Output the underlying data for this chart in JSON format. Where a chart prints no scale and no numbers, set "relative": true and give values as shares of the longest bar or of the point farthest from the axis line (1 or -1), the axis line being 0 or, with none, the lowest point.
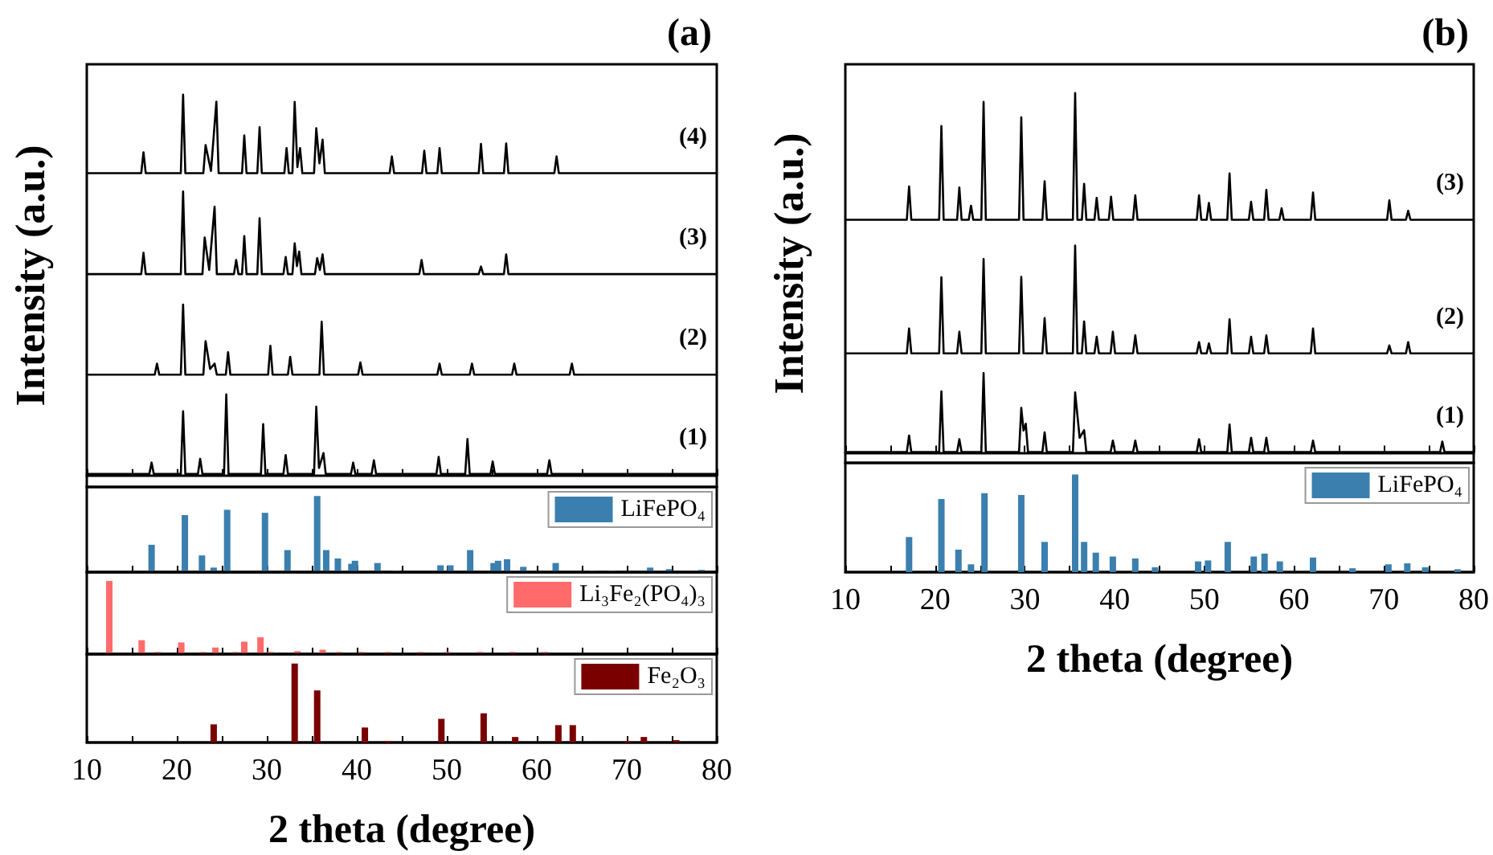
{
  "chart_data": [
    {
      "type": "line",
      "title": "(a)",
      "ylabel": "Intensity (a.u.)",
      "relative": true,
      "xlim": [
        10,
        80
      ],
      "xticks": [
        10,
        {
          "value": 15,
          "label": null
        },
        20,
        {
          "value": 25,
          "label": null
        },
        30,
        {
          "value": 35,
          "label": null
        },
        40,
        {
          "value": 45,
          "label": null
        },
        50,
        {
          "value": 55,
          "label": null
        },
        60,
        {
          "value": 65,
          "label": null
        },
        70,
        {
          "value": 75,
          "label": null
        },
        80
      ],
      "tick_labels": false,
      "series": [
        {
          "name": "(1)",
          "color": "#000000",
          "x": [
            10,
            16.95,
            17.2,
            17.45,
            20.45,
            20.7,
            20.95,
            22.35,
            22.6,
            22.85,
            25.25,
            25.5,
            25.75,
            29.35,
            29.6,
            29.85,
            31.85,
            32.1,
            32.35,
            35.25,
            35.5,
            35.8,
            36.3,
            36.55,
            39.35,
            39.6,
            39.85,
            41.65,
            41.9,
            42.15,
            48.85,
            49.1,
            49.35,
            52.05,
            52.3,
            52.55,
            54.85,
            55.1,
            55.35,
            61.15,
            61.4,
            61.65,
            80
          ],
          "values": [
            0.004,
            0.004,
            0.034,
            0.004,
            0.004,
            0.169,
            0.004,
            0.004,
            0.044,
            0.004,
            0.004,
            0.213,
            0.004,
            0.004,
            0.135,
            0.004,
            0.004,
            0.054,
            0.004,
            0.004,
            0.181,
            0.02,
            0.059,
            0.004,
            0.004,
            0.034,
            0.004,
            0.004,
            0.04,
            0.004,
            0.004,
            0.049,
            0.004,
            0.004,
            0.096,
            0.004,
            0.004,
            0.037,
            0.004,
            0.004,
            0.04,
            0.004,
            0.004
          ]
        },
        {
          "name": "(2)",
          "color": "#000000",
          "x": [
            10,
            17.55,
            17.8,
            18.05,
            20.45,
            20.7,
            20.95,
            22.95,
            23.2,
            23.7,
            24.2,
            24.45,
            25.45,
            25.7,
            25.95,
            30.15,
            30.4,
            30.65,
            32.35,
            32.6,
            32.85,
            35.85,
            36.1,
            36.35,
            40.15,
            40.4,
            40.65,
            48.95,
            49.2,
            49.45,
            52.55,
            52.8,
            53.05,
            57.25,
            57.5,
            57.75,
            63.65,
            63.9,
            64.15,
            80
          ],
          "values": [
            0.265,
            0.265,
            0.294,
            0.265,
            0.265,
            0.449,
            0.265,
            0.265,
            0.353,
            0.28,
            0.294,
            0.265,
            0.265,
            0.324,
            0.265,
            0.265,
            0.341,
            0.265,
            0.265,
            0.312,
            0.265,
            0.265,
            0.404,
            0.265,
            0.265,
            0.297,
            0.265,
            0.265,
            0.294,
            0.265,
            0.265,
            0.294,
            0.265,
            0.265,
            0.294,
            0.265,
            0.265,
            0.294,
            0.265,
            0.265
          ]
        },
        {
          "name": "(3)",
          "color": "#000000",
          "x": [
            10,
            16.05,
            16.3,
            16.55,
            20.45,
            20.7,
            20.95,
            22.85,
            23.1,
            23.6,
            24.2,
            24.45,
            26.35,
            26.6,
            26.85,
            27.25,
            27.5,
            27.75,
            28.95,
            29.2,
            29.45,
            31.85,
            32.1,
            32.35,
            32.85,
            33.1,
            33.35,
            33.6,
            33.85,
            35.35,
            35.6,
            35.9,
            36.2,
            36.45,
            46.95,
            47.2,
            47.45,
            53.55,
            53.8,
            54.05,
            56.35,
            56.6,
            56.85,
            80
          ],
          "values": [
            0.529,
            0.529,
            0.585,
            0.529,
            0.529,
            0.746,
            0.529,
            0.529,
            0.625,
            0.54,
            0.706,
            0.529,
            0.529,
            0.566,
            0.529,
            0.529,
            0.629,
            0.529,
            0.529,
            0.676,
            0.529,
            0.529,
            0.574,
            0.529,
            0.529,
            0.61,
            0.55,
            0.588,
            0.529,
            0.529,
            0.571,
            0.54,
            0.581,
            0.529,
            0.529,
            0.566,
            0.529,
            0.529,
            0.549,
            0.529,
            0.529,
            0.581,
            0.529,
            0.529
          ]
        },
        {
          "name": "(4)",
          "color": "#000000",
          "x": [
            10,
            16.05,
            16.3,
            16.55,
            20.45,
            20.7,
            20.95,
            22.95,
            23.2,
            23.8,
            24.4,
            24.65,
            27.25,
            27.5,
            27.75,
            28.95,
            29.2,
            29.45,
            31.95,
            32.2,
            32.45,
            32.85,
            33.1,
            33.4,
            33.7,
            33.95,
            35.25,
            35.5,
            35.85,
            36.2,
            36.45,
            43.65,
            43.9,
            44.15,
            47.25,
            47.5,
            47.75,
            48.95,
            49.2,
            49.45,
            53.55,
            53.8,
            54.05,
            56.35,
            56.6,
            56.85,
            61.95,
            62.2,
            62.45,
            80
          ],
          "values": [
            0.794,
            0.794,
            0.849,
            0.794,
            0.794,
            1,
            0.794,
            0.794,
            0.868,
            0.8,
            0.982,
            0.794,
            0.794,
            0.893,
            0.794,
            0.794,
            0.915,
            0.794,
            0.794,
            0.86,
            0.794,
            0.794,
            0.981,
            0.81,
            0.86,
            0.794,
            0.794,
            0.912,
            0.82,
            0.882,
            0.794,
            0.794,
            0.838,
            0.794,
            0.794,
            0.853,
            0.794,
            0.794,
            0.86,
            0.794,
            0.794,
            0.871,
            0.794,
            0.794,
            0.872,
            0.794,
            0.794,
            0.838,
            0.794,
            0.794
          ]
        }
      ]
    },
    {
      "type": "bar",
      "relative": true,
      "xlim": [
        10,
        80
      ],
      "xticks": [
        10,
        {
          "value": 15,
          "label": null
        },
        20,
        {
          "value": 25,
          "label": null
        },
        30,
        {
          "value": 35,
          "label": null
        },
        40,
        {
          "value": 45,
          "label": null
        },
        50,
        {
          "value": 55,
          "label": null
        },
        60,
        {
          "value": 65,
          "label": null
        },
        70,
        {
          "value": 75,
          "label": null
        },
        80
      ],
      "tick_labels": false,
      "legend": "top right",
      "series": [
        {
          "name": "LiFePO₄",
          "color": "#3b7fae",
          "x": [
            17.2,
            20.9,
            22.8,
            24.1,
            25.6,
            29.8,
            32.3,
            35.6,
            36.6,
            37.9,
            39.4,
            39.8,
            42.3,
            44.4,
            49.3,
            50.4,
            52.6,
            55.2,
            55.7,
            56.7,
            58.5,
            62.1,
            66.3,
            68.4,
            72.6,
            74.7,
            78.3
          ],
          "values": [
            0.36,
            0.75,
            0.22,
            0.06,
            0.82,
            0.78,
            0.29,
            1,
            0.29,
            0.18,
            0.11,
            0.15,
            0.12,
            0.02,
            0.09,
            0.09,
            0.29,
            0.12,
            0.15,
            0.17,
            0.07,
            0.12,
            0.02,
            0.02,
            0.06,
            0.04,
            0.03
          ]
        }
      ]
    },
    {
      "type": "bar",
      "relative": true,
      "xlim": [
        10,
        80
      ],
      "xticks": [
        10,
        {
          "value": 15,
          "label": null
        },
        20,
        {
          "value": 25,
          "label": null
        },
        30,
        {
          "value": 35,
          "label": null
        },
        40,
        {
          "value": 45,
          "label": null
        },
        50,
        {
          "value": 55,
          "label": null
        },
        60,
        {
          "value": 65,
          "label": null
        },
        70,
        {
          "value": 75,
          "label": null
        },
        80
      ],
      "tick_labels": false,
      "legend": "top right",
      "series": [
        {
          "name": "Li₃Fe₂(PO₄)₃",
          "color": "#ff6b6b",
          "x": [
            12.5,
            16.1,
            17.9,
            20.5,
            22.9,
            24.3,
            26.5,
            27.5,
            29.3,
            30.4,
            33.4,
            36.2,
            38,
            40.5,
            43.5,
            47.1,
            50.1,
            53.7,
            57.3,
            60.9
          ],
          "values": [
            1,
            0.19,
            0.03,
            0.16,
            0.03,
            0.09,
            0.03,
            0.17,
            0.23,
            0.03,
            0.04,
            0.06,
            0.03,
            0.03,
            0.03,
            0.03,
            0.03,
            0.03,
            0.03,
            0.03
          ]
        }
      ]
    },
    {
      "type": "bar",
      "xlabel": "2 theta (degree)",
      "relative": true,
      "xlim": [
        10,
        80
      ],
      "xticks": [
        10,
        {
          "value": 15,
          "label": null
        },
        20,
        {
          "value": 25,
          "label": null
        },
        30,
        {
          "value": 35,
          "label": null
        },
        40,
        {
          "value": 45,
          "label": null
        },
        50,
        {
          "value": 55,
          "label": null
        },
        60,
        {
          "value": 65,
          "label": null
        },
        70,
        {
          "value": 75,
          "label": null
        },
        80
      ],
      "tick_labels": "x",
      "legend": "top right",
      "series": [
        {
          "name": "Fe₂O₃",
          "color": "#7a0000",
          "x": [
            24.1,
            33.1,
            35.6,
            40.9,
            43.5,
            49.4,
            54.1,
            57.6,
            62.4,
            64,
            70.1,
            71.9,
            75.5
          ],
          "values": [
            0.23,
            1,
            0.66,
            0.19,
            0.02,
            0.3,
            0.37,
            0.07,
            0.22,
            0.22,
            0.02,
            0.07,
            0.03
          ]
        }
      ]
    },
    {
      "type": "line",
      "title": "(b)",
      "ylabel": "Intensity (a.u.)",
      "relative": true,
      "xlim": [
        10,
        80
      ],
      "xticks": [
        10,
        {
          "value": 15,
          "label": null
        },
        20,
        {
          "value": 25,
          "label": null
        },
        30,
        {
          "value": 35,
          "label": null
        },
        40,
        {
          "value": 45,
          "label": null
        },
        50,
        {
          "value": 55,
          "label": null
        },
        60,
        {
          "value": 65,
          "label": null
        },
        70,
        {
          "value": 75,
          "label": null
        },
        80
      ],
      "tick_labels": false,
      "series": [
        {
          "name": "(1)",
          "color": "#000000",
          "x": [
            10,
            16.85,
            17.1,
            17.35,
            20.45,
            20.7,
            20.95,
            22.45,
            22.7,
            22.95,
            25.15,
            25.4,
            25.65,
            29.35,
            29.6,
            29.85,
            30.1,
            30.35,
            31.95,
            32.2,
            32.45,
            35.35,
            35.6,
            36.1,
            36.6,
            36.85,
            39.55,
            39.8,
            40.05,
            42.05,
            42.3,
            42.55,
            49.15,
            49.4,
            49.65,
            52.55,
            52.8,
            53.05,
            54.95,
            55.2,
            55.45,
            56.65,
            56.9,
            57.15,
            61.85,
            62.1,
            62.35,
            76.25,
            76.5,
            76.75,
            80
          ],
          "values": [
            0,
            0,
            0.046,
            0,
            0,
            0.169,
            0,
            0,
            0.036,
            0,
            0,
            0.22,
            0,
            0,
            0.123,
            0.06,
            0.079,
            0,
            0,
            0.055,
            0,
            0,
            0.166,
            0.04,
            0.061,
            0,
            0,
            0.032,
            0,
            0,
            0.032,
            0,
            0,
            0.036,
            0,
            0,
            0.077,
            0,
            0,
            0.04,
            0,
            0,
            0.04,
            0,
            0,
            0.032,
            0,
            0,
            0.029,
            0,
            0
          ]
        },
        {
          "name": "(2)",
          "color": "#000000",
          "x": [
            10,
            16.85,
            17.1,
            17.35,
            20.45,
            20.7,
            20.95,
            22.45,
            22.7,
            22.95,
            25.15,
            25.4,
            25.65,
            29.35,
            29.6,
            29.85,
            31.95,
            32.2,
            32.45,
            35.35,
            35.6,
            35.85,
            36.35,
            36.6,
            36.85,
            37.75,
            38,
            38.25,
            39.55,
            39.8,
            40.05,
            42.05,
            42.3,
            42.55,
            49.15,
            49.4,
            49.65,
            50.25,
            50.5,
            50.75,
            52.55,
            52.8,
            53.05,
            54.95,
            55.2,
            55.45,
            56.65,
            56.9,
            57.15,
            61.85,
            62.1,
            62.35,
            70.35,
            70.6,
            70.85,
            72.45,
            72.7,
            72.95,
            80
          ],
          "values": [
            0.275,
            0.275,
            0.344,
            0.275,
            0.275,
            0.487,
            0.275,
            0.275,
            0.335,
            0.275,
            0.275,
            0.538,
            0.275,
            0.275,
            0.488,
            0.275,
            0.275,
            0.373,
            0.275,
            0.275,
            0.575,
            0.275,
            0.275,
            0.364,
            0.275,
            0.275,
            0.321,
            0.275,
            0.275,
            0.335,
            0.275,
            0.275,
            0.325,
            0.275,
            0.275,
            0.306,
            0.275,
            0.275,
            0.303,
            0.275,
            0.275,
            0.37,
            0.275,
            0.275,
            0.321,
            0.275,
            0.275,
            0.325,
            0.275,
            0.275,
            0.344,
            0.275,
            0.275,
            0.297,
            0.275,
            0.275,
            0.306,
            0.275,
            0.275
          ]
        },
        {
          "name": "(3)",
          "color": "#000000",
          "x": [
            10,
            16.85,
            17.1,
            17.35,
            20.45,
            20.7,
            20.95,
            22.45,
            22.7,
            22.95,
            23.75,
            24,
            24.25,
            25.15,
            25.4,
            25.65,
            29.35,
            29.6,
            29.85,
            31.95,
            32.2,
            32.45,
            35.35,
            35.6,
            35.85,
            36.35,
            36.6,
            36.85,
            37.75,
            38,
            38.25,
            39.35,
            39.6,
            39.85,
            42.05,
            42.3,
            42.55,
            49.15,
            49.4,
            49.65,
            50.25,
            50.5,
            50.75,
            52.55,
            52.8,
            53.05,
            54.95,
            55.2,
            55.45,
            56.65,
            56.9,
            57.15,
            58.35,
            58.6,
            58.85,
            61.85,
            62.1,
            62.35,
            70.35,
            70.6,
            70.85,
            72.45,
            72.7,
            72.95,
            80
          ],
          "values": [
            0.647,
            0.647,
            0.74,
            0.647,
            0.647,
            0.908,
            0.647,
            0.647,
            0.737,
            0.647,
            0.647,
            0.686,
            0.647,
            0.647,
            0.975,
            0.647,
            0.647,
            0.932,
            0.647,
            0.647,
            0.754,
            0.647,
            0.647,
            1,
            0.647,
            0.647,
            0.747,
            0.647,
            0.647,
            0.708,
            0.647,
            0.647,
            0.711,
            0.647,
            0.647,
            0.715,
            0.647,
            0.647,
            0.715,
            0.647,
            0.647,
            0.694,
            0.647,
            0.647,
            0.776,
            0.647,
            0.647,
            0.697,
            0.647,
            0.647,
            0.73,
            0.647,
            0.647,
            0.679,
            0.647,
            0.647,
            0.723,
            0.647,
            0.647,
            0.701,
            0.647,
            0.647,
            0.672,
            0.647,
            0.647
          ]
        }
      ]
    },
    {
      "type": "bar",
      "xlabel": "2 theta (degree)",
      "relative": true,
      "xlim": [
        10,
        80
      ],
      "xticks": [
        10,
        {
          "value": 15,
          "label": null
        },
        20,
        {
          "value": 25,
          "label": null
        },
        30,
        {
          "value": 35,
          "label": null
        },
        40,
        {
          "value": 45,
          "label": null
        },
        50,
        {
          "value": 55,
          "label": null
        },
        60,
        {
          "value": 65,
          "label": null
        },
        70,
        {
          "value": 75,
          "label": null
        },
        80
      ],
      "tick_labels": "x",
      "legend": "top right",
      "series": [
        {
          "name": "LiFePO₄",
          "color": "#3b7fae",
          "x": [
            17.1,
            20.7,
            22.6,
            24,
            25.5,
            29.6,
            32.2,
            35.6,
            36.6,
            37.9,
            39.8,
            42.3,
            44.5,
            49.3,
            50.4,
            52.6,
            55.5,
            56.7,
            58.4,
            62.1,
            66.5,
            70.5,
            72.6,
            74.6,
            78.2
          ],
          "values": [
            0.36,
            0.75,
            0.23,
            0.08,
            0.81,
            0.79,
            0.31,
            1,
            0.31,
            0.2,
            0.16,
            0.14,
            0.05,
            0.11,
            0.12,
            0.31,
            0.16,
            0.19,
            0.11,
            0.15,
            0.04,
            0.08,
            0.09,
            0.05,
            0.03
          ]
        }
      ]
    }
  ]
}
